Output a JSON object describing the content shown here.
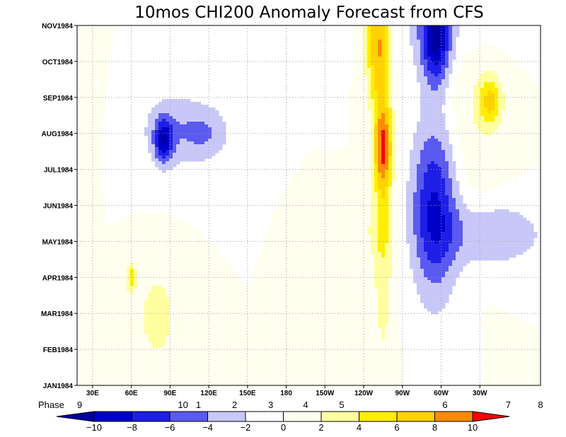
{
  "chart_data": {
    "type": "heatmap",
    "title": "10mos CHI200 Anomaly Forecast from CFS",
    "x_axis": {
      "ticks": [
        "30E",
        "60E",
        "90E",
        "120E",
        "150E",
        "180",
        "150W",
        "120W",
        "90W",
        "60W",
        "30W"
      ],
      "range_lon": [
        18,
        377
      ]
    },
    "y_axis": {
      "ticks": [
        "JAN1984",
        "FEB1984",
        "MAR1984",
        "APR1984",
        "MAY1984",
        "JUN1984",
        "JUL1984",
        "AUG1984",
        "SEP1984",
        "OCT1984",
        "NOV1984"
      ]
    },
    "phase_labels": {
      "prefix": "Phase",
      "items": [
        {
          "label": "9",
          "lon": 20
        },
        {
          "label": "10",
          "lon": 100
        },
        {
          "label": "1",
          "lon": 112
        },
        {
          "label": "2",
          "lon": 140
        },
        {
          "label": "3",
          "lon": 168
        },
        {
          "label": "4",
          "lon": 195
        },
        {
          "label": "5",
          "lon": 223
        },
        {
          "label": "6",
          "lon": 303
        },
        {
          "label": "7",
          "lon": 352
        },
        {
          "label": "8",
          "lon": 377
        }
      ]
    },
    "colorbar": {
      "levels": [
        -10,
        -8,
        -6,
        -4,
        -2,
        0,
        2,
        4,
        6,
        8,
        10
      ],
      "colors": [
        "#0000a0",
        "#0000c8",
        "#1e1ee6",
        "#5a5af0",
        "#c8c8f8",
        "#ffffff",
        "#fffff0",
        "#ffffa0",
        "#ffee00",
        "#ffd200",
        "#ff8c00",
        "#ff0000"
      ]
    },
    "blobs": [
      {
        "lon": 255,
        "month": 5.6,
        "rlon": 8,
        "rmon": 4.8,
        "value": 4.5
      },
      {
        "lon": 250,
        "month": 9.6,
        "rlon": 9,
        "rmon": 1.7,
        "value": 7.0
      },
      {
        "lon": 255,
        "month": 6.6,
        "rlon": 7,
        "rmon": 1.1,
        "value": 6.5
      },
      {
        "lon": 80,
        "month": 1.9,
        "rlon": 16,
        "rmon": 1.4,
        "value": 3.0
      },
      {
        "lon": 60,
        "month": 3.0,
        "rlon": 4,
        "rmon": 0.4,
        "value": 5.0
      },
      {
        "lon": 318,
        "month": 7.8,
        "rlon": 27,
        "rmon": 3.0,
        "value": 2.0
      },
      {
        "lon": 338,
        "month": 7.9,
        "rlon": 9,
        "rmon": 0.7,
        "value": 6.0
      },
      {
        "lon": 238,
        "month": 4.3,
        "rlon": 22,
        "rmon": 0.8,
        "value": 1.5
      },
      {
        "lon": 30,
        "month": 8.8,
        "rlon": 6,
        "rmon": 2.0,
        "value": 1.2
      },
      {
        "lon": 295,
        "month": 5.0,
        "rlon": 18,
        "rmon": 2.5,
        "value": -8.5
      },
      {
        "lon": 296,
        "month": 9.8,
        "rlon": 11,
        "rmon": 1.4,
        "value": -10.0
      },
      {
        "lon": 300,
        "month": 10.0,
        "rlon": 40,
        "rmon": 1.5,
        "value": -2.5
      },
      {
        "lon": 340,
        "month": 4.2,
        "rlon": 40,
        "rmon": 0.9,
        "value": -4.0
      },
      {
        "lon": 95,
        "month": 7.1,
        "rlon": 30,
        "rmon": 1.1,
        "value": -3.5
      },
      {
        "lon": 85,
        "month": 6.8,
        "rlon": 7,
        "rmon": 0.6,
        "value": -7.5
      },
      {
        "lon": 120,
        "month": 7.0,
        "rlon": 18,
        "rmon": 0.7,
        "value": -2.5
      }
    ]
  }
}
